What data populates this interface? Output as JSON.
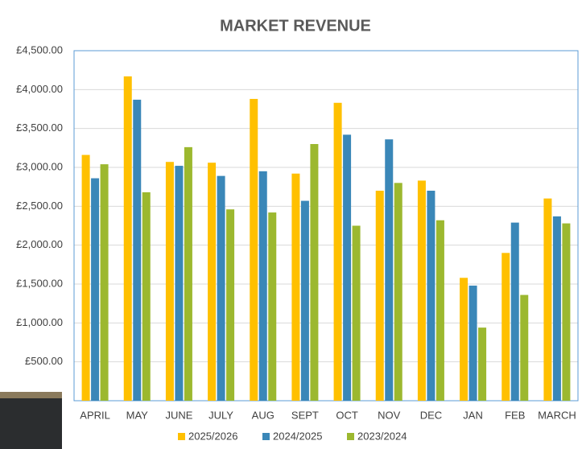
{
  "chart_data": {
    "type": "bar",
    "title": "MARKET REVENUE",
    "categories": [
      "APRIL",
      "MAY",
      "JUNE",
      "JULY",
      "AUG",
      "SEPT",
      "OCT",
      "NOV",
      "DEC",
      "JAN",
      "FEB",
      "MARCH"
    ],
    "series": [
      {
        "name": "2025/2026",
        "color": "#ffc000",
        "values": [
          3160,
          4170,
          3070,
          3060,
          3880,
          2920,
          3830,
          2700,
          2830,
          1580,
          1900,
          2600
        ]
      },
      {
        "name": "2024/2025",
        "color": "#3a87b8",
        "values": [
          2860,
          3870,
          3020,
          2890,
          2950,
          2570,
          3420,
          3360,
          2700,
          1480,
          2290,
          2370
        ]
      },
      {
        "name": "2023/2024",
        "color": "#9cb82f",
        "values": [
          3040,
          2680,
          3260,
          2460,
          2420,
          3300,
          2250,
          2800,
          2320,
          940,
          1360,
          2280
        ]
      }
    ],
    "ylim": [
      0,
      4500
    ],
    "yticks": [
      {
        "value": 500,
        "label": "£500.00"
      },
      {
        "value": 1000,
        "label": "£1,000.00"
      },
      {
        "value": 1500,
        "label": "£1,500.00"
      },
      {
        "value": 2000,
        "label": "£2,000.00"
      },
      {
        "value": 2500,
        "label": "£2,500.00"
      },
      {
        "value": 3000,
        "label": "£3,000.00"
      },
      {
        "value": 3500,
        "label": "£3,500.00"
      },
      {
        "value": 4000,
        "label": "£4,000.00"
      },
      {
        "value": 4500,
        "label": "£4,500.00"
      }
    ],
    "grid": true
  }
}
